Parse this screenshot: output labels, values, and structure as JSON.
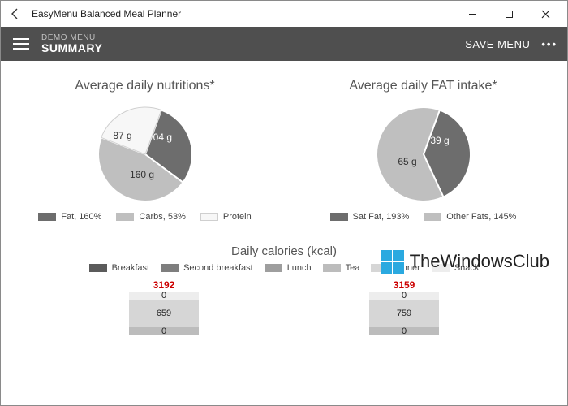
{
  "window": {
    "title": "EasyMenu Balanced Meal Planner"
  },
  "toolbar": {
    "subtitle": "DEMO MENU",
    "title": "SUMMARY",
    "save_label": "SAVE MENU"
  },
  "pie1": {
    "title": "Average daily nutritions*",
    "type": "pie",
    "radius": 58,
    "slices": [
      {
        "label": "104 g",
        "value": 104,
        "color": "#6d6d6d",
        "label_offset": [
          18,
          -20
        ]
      },
      {
        "label": "160 g",
        "value": 160,
        "color": "#bfbfbf",
        "label_offset": [
          -4,
          26
        ]
      },
      {
        "label": "87 g",
        "value": 87,
        "color": "#f7f7f7",
        "border": "#cfcfcf",
        "label_offset": [
          -28,
          -22
        ]
      }
    ],
    "legend": [
      {
        "label": "Fat, 160%",
        "color": "#6d6d6d"
      },
      {
        "label": "Carbs, 53%",
        "color": "#bfbfbf"
      },
      {
        "label": "Protein",
        "color": "#f7f7f7",
        "border": "#cfcfcf"
      }
    ]
  },
  "pie2": {
    "title": "Average daily FAT intake*",
    "type": "pie",
    "radius": 58,
    "slices": [
      {
        "label": "39 g",
        "value": 39,
        "color": "#6d6d6d",
        "label_offset": [
          20,
          -16
        ]
      },
      {
        "label": "65 g",
        "value": 65,
        "color": "#bfbfbf",
        "label_offset": [
          -20,
          10
        ]
      }
    ],
    "legend": [
      {
        "label": "Sat Fat, 193%",
        "color": "#6d6d6d"
      },
      {
        "label": "Other Fats, 145%",
        "color": "#bfbfbf"
      }
    ]
  },
  "calories": {
    "title": "Daily calories (kcal)",
    "legend": [
      {
        "label": "Breakfast",
        "color": "#5b5b5b"
      },
      {
        "label": "Second breakfast",
        "color": "#7e7e7e"
      },
      {
        "label": "Lunch",
        "color": "#9e9e9e"
      },
      {
        "label": "Tea",
        "color": "#bcbcbc"
      },
      {
        "label": "Dinner",
        "color": "#d6d6d6"
      },
      {
        "label": "Snack",
        "color": "#ededed"
      }
    ],
    "bars": [
      {
        "total": "3192",
        "segments": [
          {
            "label": "0",
            "height": 10,
            "color": "#ededed"
          },
          {
            "label": "659",
            "height": 34,
            "color": "#d6d6d6"
          },
          {
            "label": "0",
            "height": 10,
            "color": "#bcbcbc"
          }
        ]
      },
      {
        "total": "3159",
        "segments": [
          {
            "label": "0",
            "height": 10,
            "color": "#ededed"
          },
          {
            "label": "759",
            "height": 34,
            "color": "#d6d6d6"
          },
          {
            "label": "0",
            "height": 10,
            "color": "#bcbcbc"
          }
        ]
      }
    ]
  },
  "watermark": {
    "text": "TheWindowsClub",
    "logo_colors": [
      "#2aa9e0",
      "#2aa9e0",
      "#2aa9e0",
      "#2aa9e0"
    ]
  }
}
